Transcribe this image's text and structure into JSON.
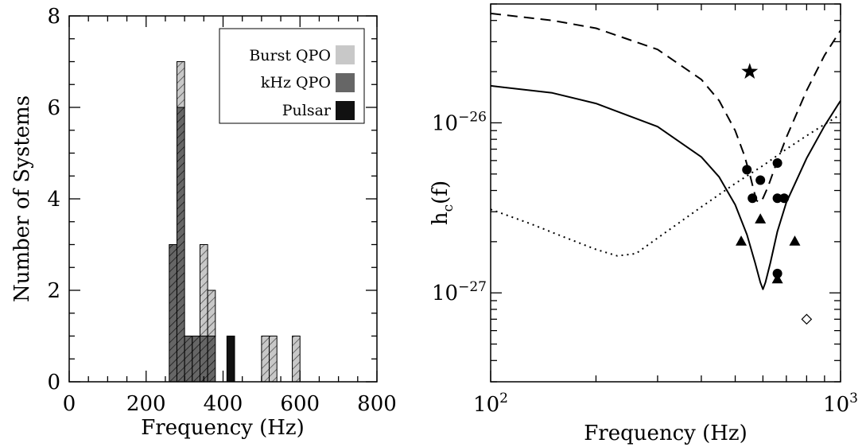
{
  "chart_data": [
    {
      "type": "bar",
      "xlabel": "Frequency (Hz)",
      "ylabel": "Number of Systems",
      "xlim": [
        0,
        800
      ],
      "ylim": [
        0,
        8
      ],
      "xticks": [
        "0",
        "200",
        "400",
        "600",
        "800"
      ],
      "yticks": [
        "0",
        "2",
        "4",
        "6",
        "8"
      ],
      "bin_width": 20,
      "legend_position": "top-right",
      "series": [
        {
          "name": "Pulsar",
          "color": "#111111",
          "fill": "solid",
          "bins": [
            {
              "x0": 410,
              "value": 1
            }
          ]
        },
        {
          "name": "kHz QPO",
          "color": "#666666",
          "fill": "hatched",
          "bins": [
            {
              "x0": 260,
              "value": 3
            },
            {
              "x0": 280,
              "value": 6
            },
            {
              "x0": 300,
              "value": 1
            },
            {
              "x0": 320,
              "value": 1
            },
            {
              "x0": 340,
              "value": 1
            },
            {
              "x0": 360,
              "value": 1
            }
          ]
        },
        {
          "name": "Burst QPO",
          "color": "#c8c8c8",
          "fill": "hatched",
          "bins": [
            {
              "x0": 280,
              "value": 1
            },
            {
              "x0": 340,
              "value": 2
            },
            {
              "x0": 360,
              "value": 1
            },
            {
              "x0": 500,
              "value": 1
            },
            {
              "x0": 520,
              "value": 1
            },
            {
              "x0": 580,
              "value": 1
            }
          ]
        }
      ]
    },
    {
      "type": "line",
      "xlabel": "Frequency (Hz)",
      "ylabel": "h_c(f)",
      "ylabel_main": "h",
      "ylabel_sub": "c",
      "ylabel_tail": "(f)",
      "xscale": "log",
      "yscale": "log",
      "xlim": [
        100,
        1000
      ],
      "ylim": [
        3e-28,
        5e-26
      ],
      "xticks": [
        {
          "value": 100,
          "base": "10",
          "exp": "2"
        },
        {
          "value": 1000,
          "base": "10",
          "exp": "3"
        }
      ],
      "yticks": [
        {
          "value": 1e-26,
          "base": "10",
          "exp": "−26"
        },
        {
          "value": 1e-27,
          "base": "10",
          "exp": "−27"
        }
      ],
      "series": [
        {
          "style": "solid",
          "x": [
            100,
            150,
            200,
            300,
            400,
            450,
            500,
            540,
            570,
            590,
            600,
            610,
            630,
            660,
            700,
            800,
            900,
            1000
          ],
          "y": [
            1.65e-26,
            1.5e-26,
            1.3e-26,
            9.5e-27,
            6.3e-27,
            4.8e-27,
            3.3e-27,
            2.2e-27,
            1.5e-27,
            1.15e-27,
            1.05e-27,
            1.15e-27,
            1.5e-27,
            2.3e-27,
            3.4e-27,
            6.2e-27,
            9.6e-27,
            1.35e-26
          ]
        },
        {
          "style": "dashed",
          "x": [
            100,
            150,
            200,
            300,
            400,
            450,
            500,
            530,
            550,
            565,
            575,
            585,
            600,
            620,
            650,
            700,
            800,
            900,
            1000
          ],
          "y": [
            4.4e-26,
            4e-26,
            3.6e-26,
            2.7e-26,
            1.8e-26,
            1.35e-26,
            9e-27,
            6.5e-27,
            5e-27,
            4e-27,
            3.5e-27,
            3.4e-27,
            3.6e-27,
            4.2e-27,
            5.5e-27,
            8.2e-27,
            1.55e-26,
            2.5e-26,
            3.5e-26
          ]
        },
        {
          "style": "dotted",
          "x": [
            100,
            130,
            160,
            200,
            230,
            260,
            300,
            400,
            500,
            600,
            700,
            800,
            900,
            1000
          ],
          "y": [
            3.1e-27,
            2.55e-27,
            2.15e-27,
            1.8e-27,
            1.65e-27,
            1.7e-27,
            2.1e-27,
            3.2e-27,
            4.4e-27,
            5.6e-27,
            7e-27,
            8.4e-27,
            9.8e-27,
            1.12e-26
          ]
        }
      ],
      "points": {
        "circles": [
          {
            "x": 540,
            "y": 5.3e-27
          },
          {
            "x": 560,
            "y": 3.6e-27
          },
          {
            "x": 590,
            "y": 4.6e-27
          },
          {
            "x": 660,
            "y": 5.8e-27
          },
          {
            "x": 660,
            "y": 3.6e-27
          },
          {
            "x": 690,
            "y": 3.6e-27
          },
          {
            "x": 660,
            "y": 1.3e-27
          }
        ],
        "triangles": [
          {
            "x": 520,
            "y": 2e-27
          },
          {
            "x": 590,
            "y": 2.7e-27
          },
          {
            "x": 740,
            "y": 2e-27
          },
          {
            "x": 660,
            "y": 1.2e-27
          }
        ],
        "stars": [
          {
            "x": 550,
            "y": 2e-26
          }
        ],
        "diamonds": [
          {
            "x": 800,
            "y": 7e-28
          }
        ]
      }
    }
  ]
}
